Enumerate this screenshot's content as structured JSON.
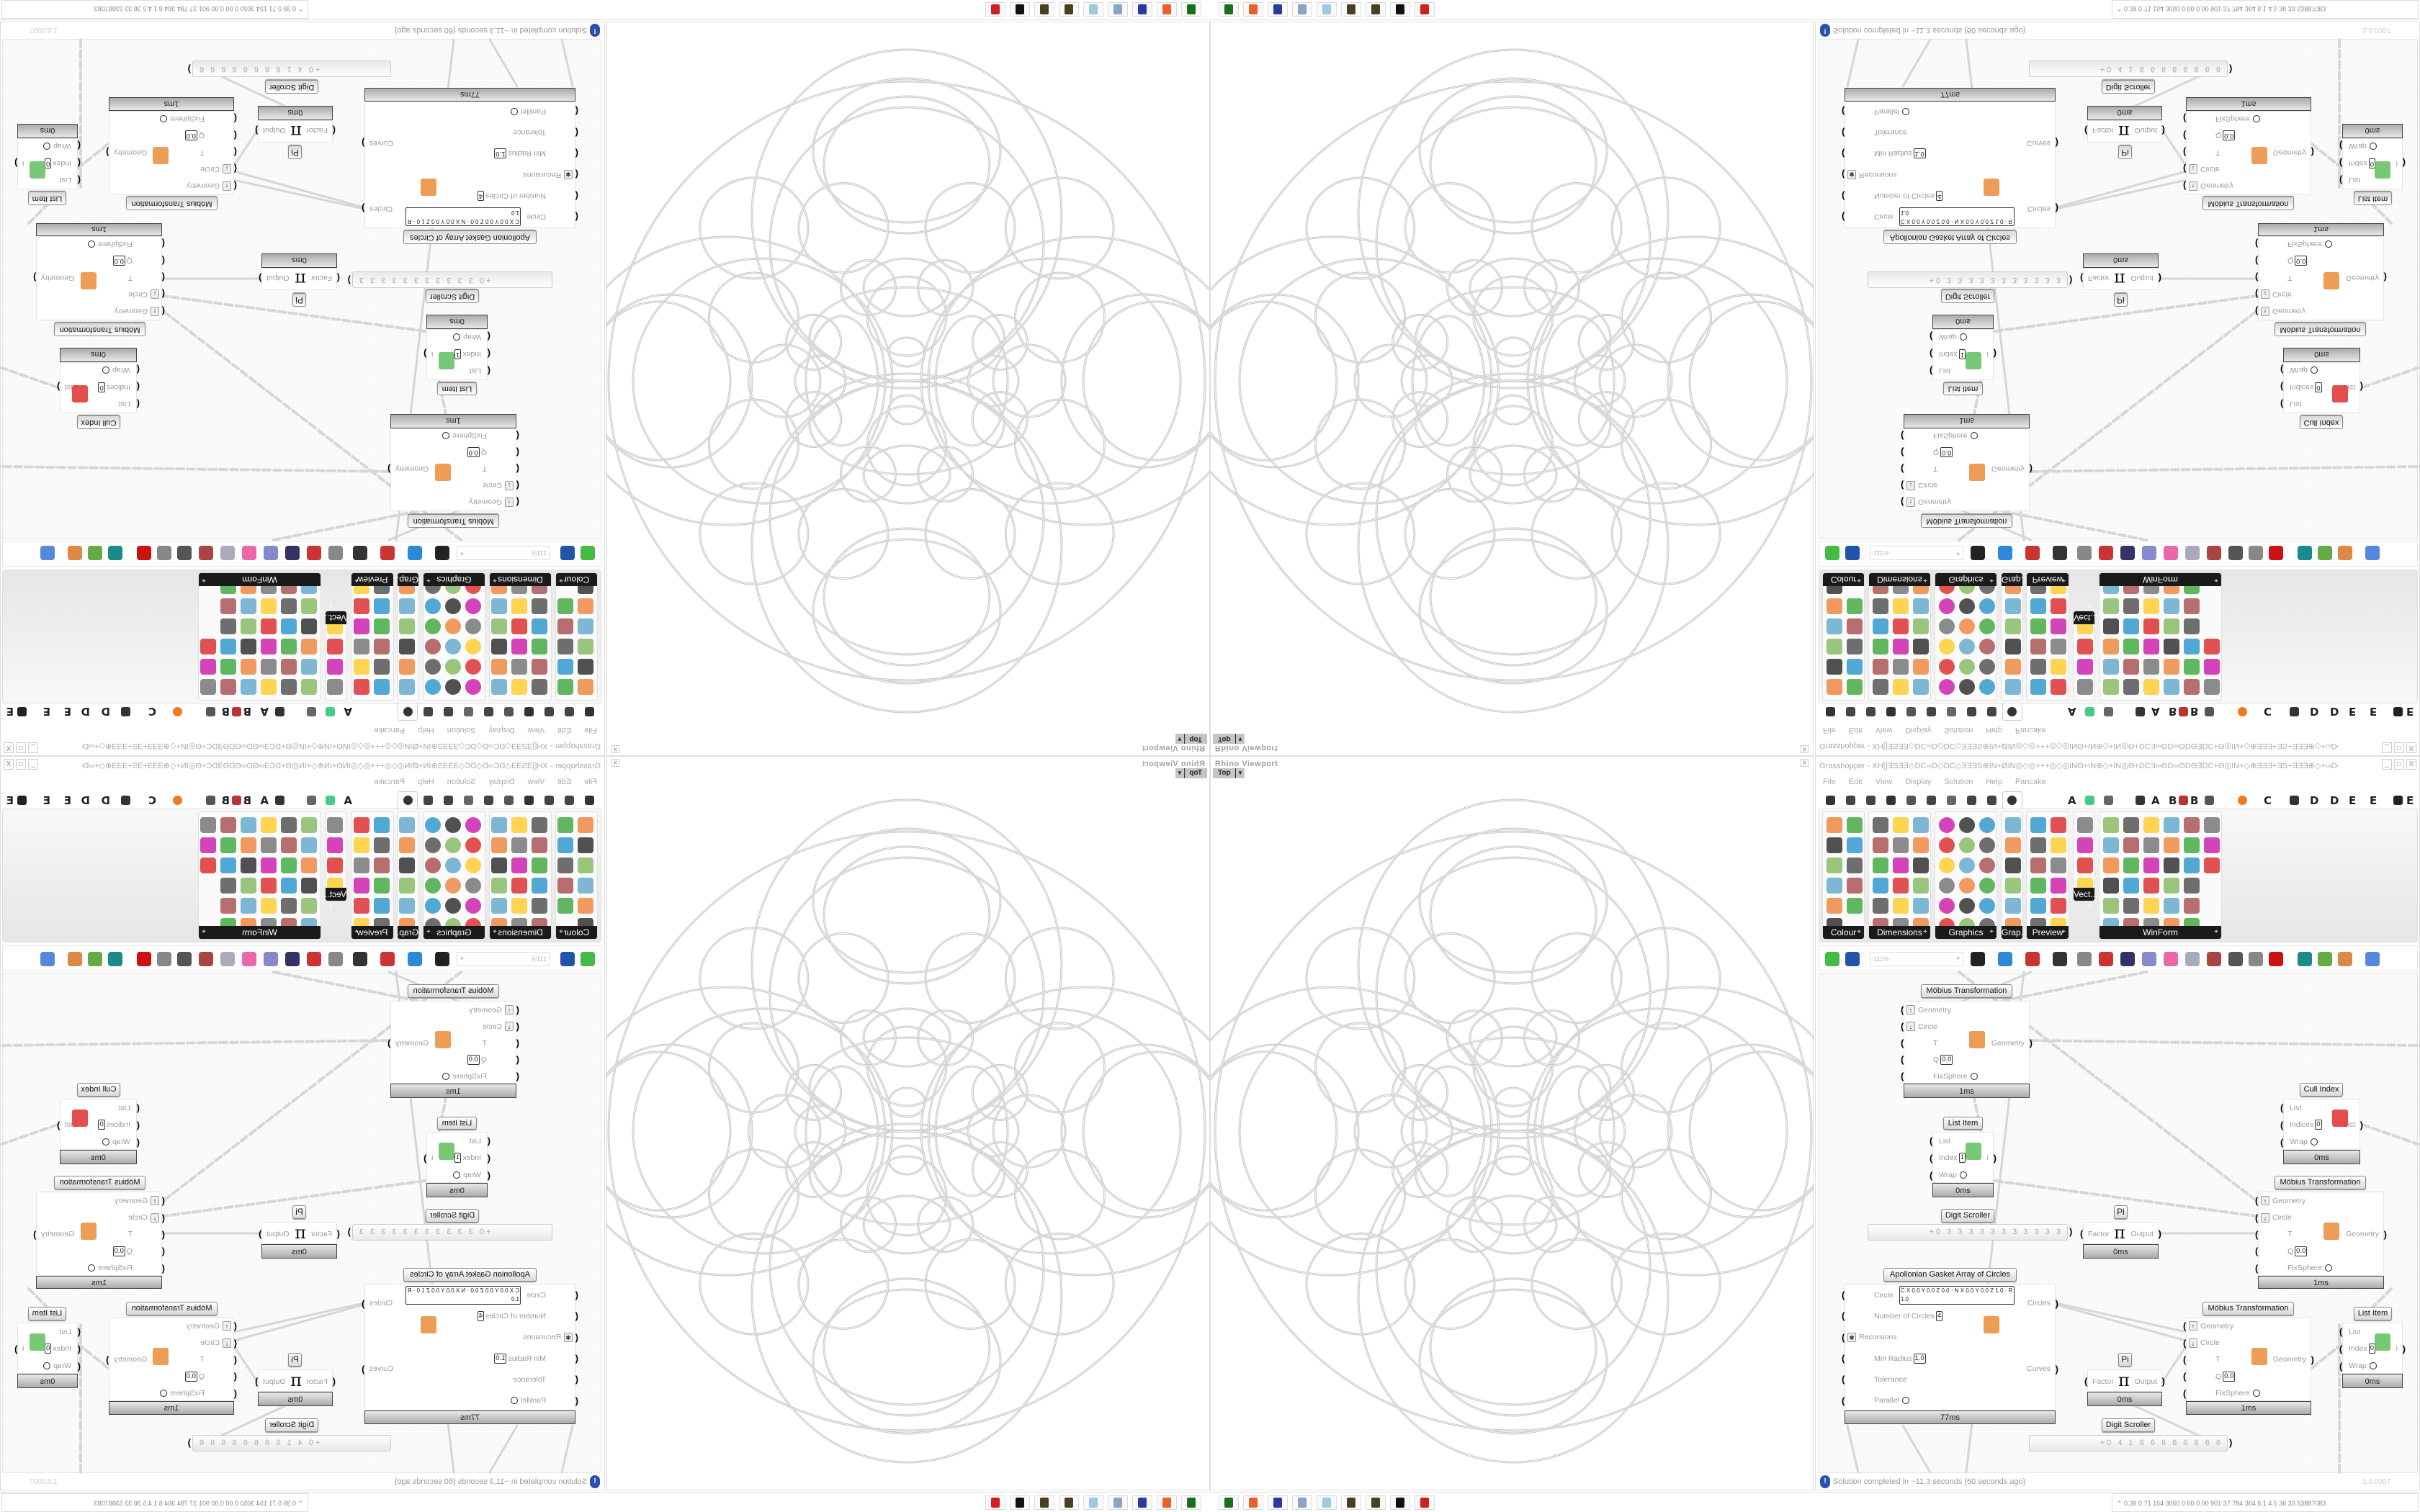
{
  "viewport": {
    "title": "Rhino Viewport",
    "view": "Top",
    "close": "x"
  },
  "taskbar": {
    "icons": [
      "taskmanager-icon",
      "firefox-icon",
      "floppy64-icon",
      "scroll-icon",
      "notepad-icon",
      "seed-icon",
      "seed-icon",
      "rhino-icon",
      "antivirus-icon"
    ]
  },
  "grasshopper": {
    "title": "Grasshopper - XH[]ƎSƎƎ◇DC∞D◇DC◇ƎƎƎS⊕IN+ØIN◎◇◎+++◎◇◎INΘ+IN⊕◇+IN◎Θ+DCƎ∞ΘD∞ΘDΘƎDC+Θ◎IN+◇⊕ƎƎƎ+ƎS+ƎƎƎ⊕◇+∞DCƎƎ+DC...",
    "window_buttons": [
      "_",
      "□",
      "X"
    ],
    "menu": [
      "File",
      "Edit",
      "View",
      "Display",
      "Solution",
      "Help",
      "Pancake"
    ],
    "tab_letters": [
      "A",
      "A",
      "B",
      "B",
      "C",
      "D",
      "D",
      "E",
      "E",
      "E"
    ],
    "ribbon_panels": [
      {
        "name": "Colour"
      },
      {
        "name": "Dimensions"
      },
      {
        "name": "Graphics"
      },
      {
        "name": "Grap..."
      },
      {
        "name": "Preview"
      },
      {
        "name": "Vect..."
      },
      {
        "name": "WinForm"
      }
    ],
    "zoom": "111%",
    "status": "Solution completed in ~11,3 seconds (60 seconds ago)",
    "version": "1.0.0007"
  },
  "nodes": [
    {
      "title": "Möbius Transformation",
      "inputs": [
        {
          "label": "Geometry",
          "arrow": "↑"
        },
        {
          "label": "Circle",
          "arrow": "↓"
        },
        {
          "label": "T"
        },
        {
          "label": "Q",
          "value": "0.0"
        },
        {
          "label": "FixSphere",
          "toggle": true
        }
      ],
      "outputs": [
        "Geometry"
      ],
      "time": "1ms"
    },
    {
      "title": "List Item",
      "inputs": [
        {
          "label": "List"
        },
        {
          "label": "Index",
          "value": "1"
        },
        {
          "label": "Wrap",
          "toggle": true
        }
      ],
      "outputs": [
        "i"
      ],
      "time": "0ms"
    },
    {
      "title": "Cull Index",
      "inputs": [
        {
          "label": "List"
        },
        {
          "label": "Indices",
          "value": "0"
        },
        {
          "label": "Wrap",
          "toggle": true
        }
      ],
      "outputs": [
        "List"
      ],
      "time": "0ms"
    },
    {
      "title": "Möbius Transformation",
      "inputs": [
        {
          "label": "Geometry",
          "arrow": "↑"
        },
        {
          "label": "Circle",
          "arrow": "↓"
        },
        {
          "label": "T"
        },
        {
          "label": "Q",
          "value": "0.0"
        },
        {
          "label": "FixSphere",
          "toggle": true
        }
      ],
      "outputs": [
        "Geometry"
      ],
      "time": "1ms"
    },
    {
      "title": "Pi",
      "inputs": [
        {
          "label": "Factor"
        }
      ],
      "outputs": [
        "Output"
      ],
      "time": "0ms"
    },
    {
      "title": "Apollonian Gasket Array of Circles",
      "inputs": [
        {
          "label": "Circle",
          "fields": "C X 0.0 Y 0.0 Z 0.0 · N X 0.0 Y 0.0 Z 1.0 · R 1.0"
        },
        {
          "label": "Number of Circles",
          "value": "4"
        },
        {
          "label": "Recursions",
          "arrow": "✱"
        },
        {
          "label": "Min Radius",
          "value": "1.0"
        },
        {
          "label": "Tolerance"
        },
        {
          "label": "Parallel",
          "toggle": true
        }
      ],
      "outputs": [
        "Circles",
        "Curves"
      ],
      "time": "77ms"
    },
    {
      "title": "Möbius Transformation",
      "inputs": [
        {
          "label": "Geometry",
          "arrow": "↑"
        },
        {
          "label": "Circle",
          "arrow": "↓"
        },
        {
          "label": "T"
        },
        {
          "label": "Q",
          "value": "0.0"
        },
        {
          "label": "FixSphere",
          "toggle": true
        }
      ],
      "outputs": [
        "Geometry"
      ],
      "time": "1ms"
    },
    {
      "title": "Pi",
      "inputs": [
        {
          "label": "Factor"
        }
      ],
      "outputs": [
        "Output"
      ],
      "time": "0ms"
    },
    {
      "title": "List Item",
      "inputs": [
        {
          "label": "List"
        },
        {
          "label": "Index",
          "value": "0"
        },
        {
          "label": "Wrap",
          "toggle": true
        }
      ],
      "outputs": [
        "i"
      ],
      "time": "0ms"
    }
  ],
  "scrollers": [
    {
      "title": "Digit Scroller",
      "digits": "+0 3 3 3 3 3 3 3 3 3 3 3"
    },
    {
      "title": "Digit Scroller",
      "digits": "+0 4 1 6 6 6 6 6 6 6 6"
    }
  ],
  "stats": "⌃  0.39 0.71  154  3050 0.00  0.00  901   37   784  364   6.1   4.5   36    33   53887083"
}
